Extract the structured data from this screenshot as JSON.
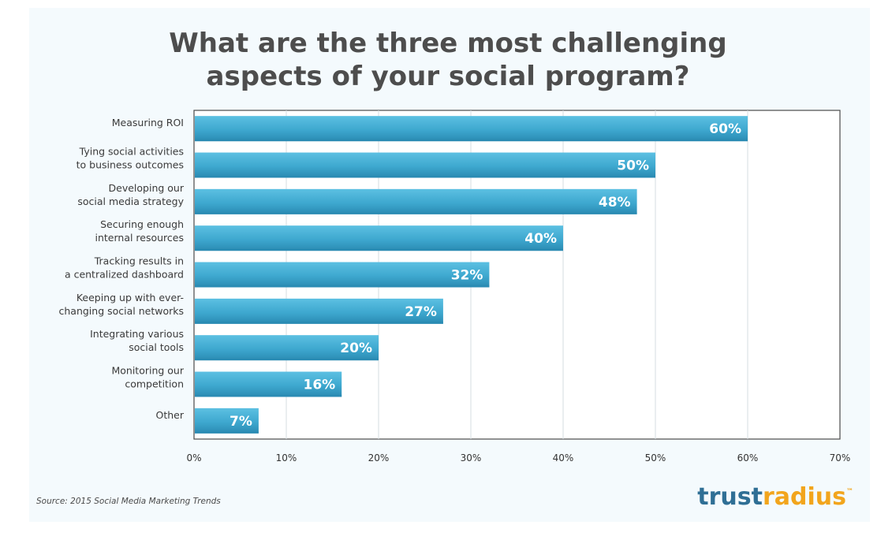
{
  "chart_data": {
    "type": "bar",
    "orientation": "horizontal",
    "title": [
      "What are the three most challenging",
      "aspects of your social program?"
    ],
    "categories": [
      [
        "Measuring ROI"
      ],
      [
        "Tying social activities",
        "to business outcomes"
      ],
      [
        "Developing our",
        "social media strategy"
      ],
      [
        "Securing enough",
        "internal resources"
      ],
      [
        "Tracking results in",
        "a centralized dashboard"
      ],
      [
        "Keeping up with ever-",
        "changing social networks"
      ],
      [
        "Integrating various",
        "social tools"
      ],
      [
        "Monitoring our",
        "competition"
      ],
      [
        "Other"
      ]
    ],
    "values": [
      60,
      50,
      48,
      40,
      32,
      27,
      20,
      16,
      7
    ],
    "value_labels": [
      "60%",
      "50%",
      "48%",
      "40%",
      "32%",
      "27%",
      "20%",
      "16%",
      "7%"
    ],
    "xlim": [
      0,
      70
    ],
    "xticks": [
      0,
      10,
      20,
      30,
      40,
      50,
      60,
      70
    ],
    "xtick_labels": [
      "0%",
      "10%",
      "20%",
      "30%",
      "40%",
      "50%",
      "60%",
      "70%"
    ],
    "xlabel": "",
    "ylabel": "",
    "grid": true,
    "bar_color": "#3ea8cf",
    "bar_color_dark": "#2a8ab2"
  },
  "source": "Source: 2015 Social Media Marketing Trends",
  "logo": {
    "part1": "trust",
    "part2": "radius",
    "mark": "™",
    "color1": "#2f6f95",
    "color2": "#f2a51c"
  }
}
